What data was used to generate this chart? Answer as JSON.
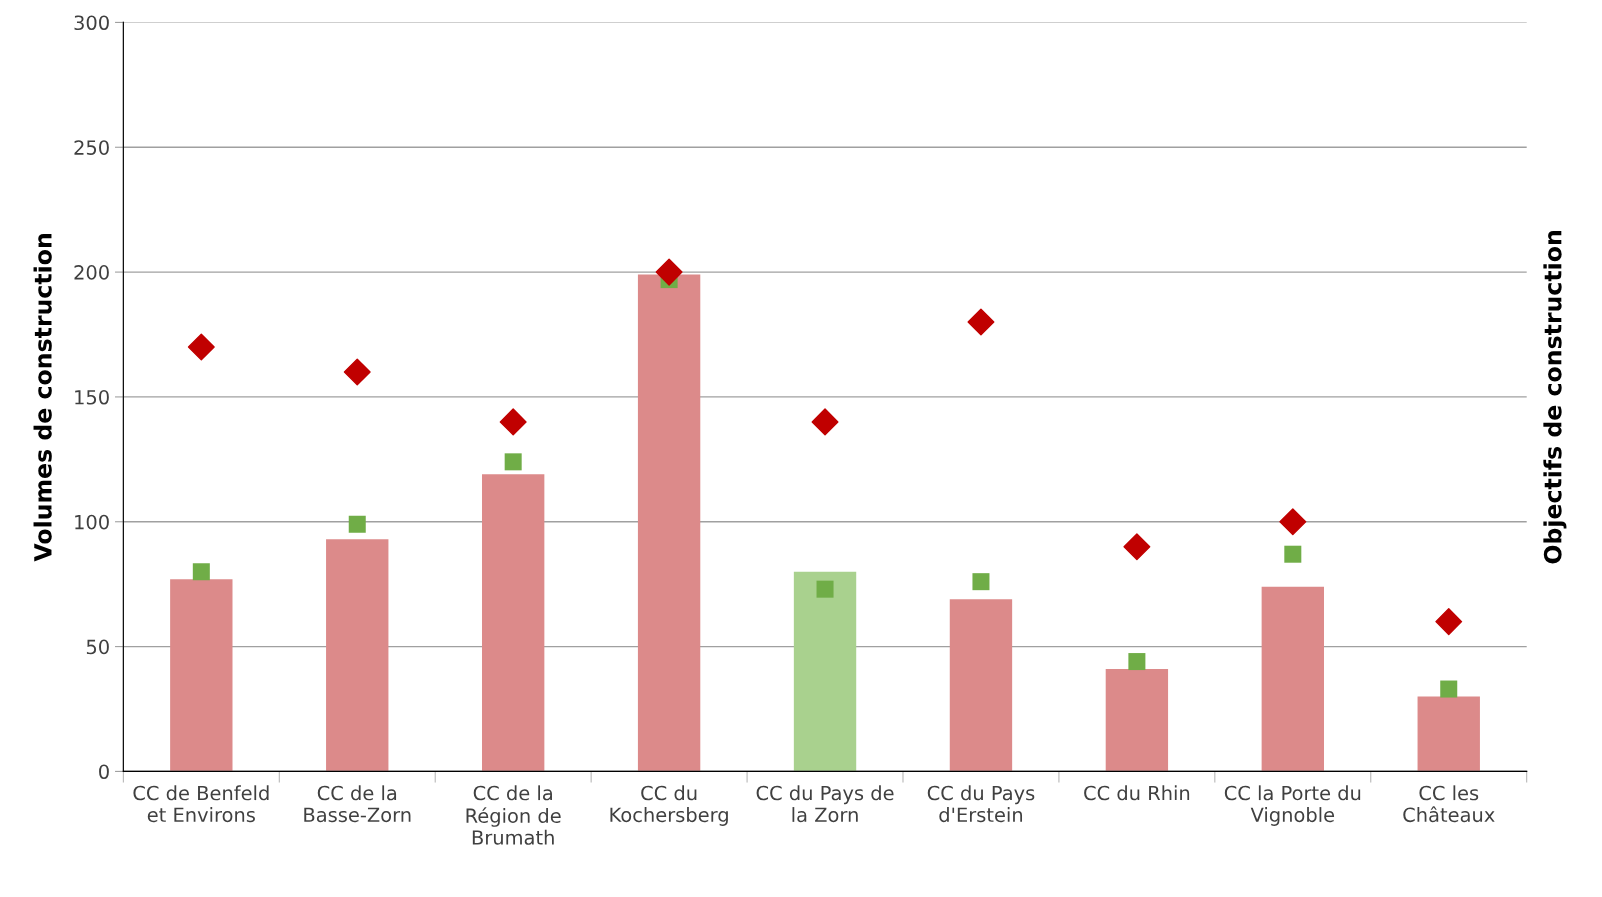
{
  "chart_data": {
    "type": "bar",
    "ylabel": "Volumes de construction",
    "y2label": "Objectifs de construction",
    "categories": [
      "CC de Benfeld\net Environs",
      "CC de la\nBasse-Zorn",
      "CC de la\nRégion de\nBrumath",
      "CC du\nKochersberg",
      "CC du Pays de\nla Zorn",
      "CC du Pays\nd'Erstein",
      "CC du Rhin",
      "CC la Porte du\nVignoble",
      "CC les\nChâteaux"
    ],
    "series": [
      {
        "values": [
          77,
          93,
          119,
          199,
          80,
          69,
          41,
          74,
          30
        ],
        "colors": [
          "#dc8a8a",
          "#dc8a8a",
          "#dc8a8a",
          "#dc8a8a",
          "#a9d18e",
          "#dc8a8a",
          "#dc8a8a",
          "#dc8a8a",
          "#dc8a8a"
        ]
      },
      {
        "type": "scatter",
        "marker": "square",
        "color": "#70ad47",
        "values": [
          80,
          99,
          124,
          197,
          73,
          76,
          44,
          87,
          33
        ]
      },
      {
        "type": "scatter",
        "marker": "diamond",
        "color": "#c00000",
        "values": [
          170,
          160,
          140,
          200,
          140,
          180,
          90,
          100,
          60
        ]
      }
    ],
    "ylim": [
      0,
      300
    ],
    "yticks": [
      0,
      50,
      100,
      150,
      200,
      250,
      300
    ],
    "grid": "y",
    "legend": false
  }
}
